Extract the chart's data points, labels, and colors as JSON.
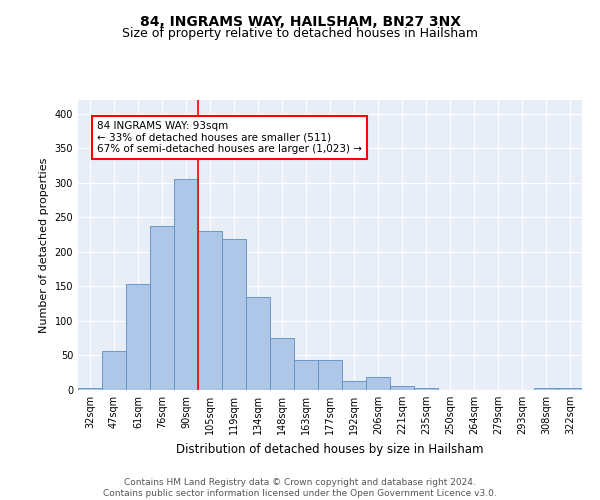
{
  "title1": "84, INGRAMS WAY, HAILSHAM, BN27 3NX",
  "title2": "Size of property relative to detached houses in Hailsham",
  "xlabel": "Distribution of detached houses by size in Hailsham",
  "ylabel": "Number of detached properties",
  "categories": [
    "32sqm",
    "47sqm",
    "61sqm",
    "76sqm",
    "90sqm",
    "105sqm",
    "119sqm",
    "134sqm",
    "148sqm",
    "163sqm",
    "177sqm",
    "192sqm",
    "206sqm",
    "221sqm",
    "235sqm",
    "250sqm",
    "264sqm",
    "279sqm",
    "293sqm",
    "308sqm",
    "322sqm"
  ],
  "values": [
    3,
    57,
    153,
    237,
    306,
    230,
    218,
    134,
    75,
    43,
    43,
    13,
    19,
    6,
    3,
    0,
    0,
    0,
    0,
    3,
    3
  ],
  "bar_color": "#aec6e8",
  "bar_edge_color": "#5b8ec4",
  "bar_width": 1.0,
  "vline_x_index": 4,
  "vline_color": "red",
  "annotation_text": "84 INGRAMS WAY: 93sqm\n← 33% of detached houses are smaller (511)\n67% of semi-detached houses are larger (1,023) →",
  "annotation_box_color": "white",
  "annotation_box_edge": "red",
  "ylim": [
    0,
    420
  ],
  "yticks": [
    0,
    50,
    100,
    150,
    200,
    250,
    300,
    350,
    400
  ],
  "background_color": "#e8eef8",
  "footer": "Contains HM Land Registry data © Crown copyright and database right 2024.\nContains public sector information licensed under the Open Government Licence v3.0.",
  "title1_fontsize": 10,
  "title2_fontsize": 9,
  "xlabel_fontsize": 8.5,
  "ylabel_fontsize": 8,
  "tick_fontsize": 7,
  "footer_fontsize": 6.5,
  "annotation_fontsize": 7.5
}
